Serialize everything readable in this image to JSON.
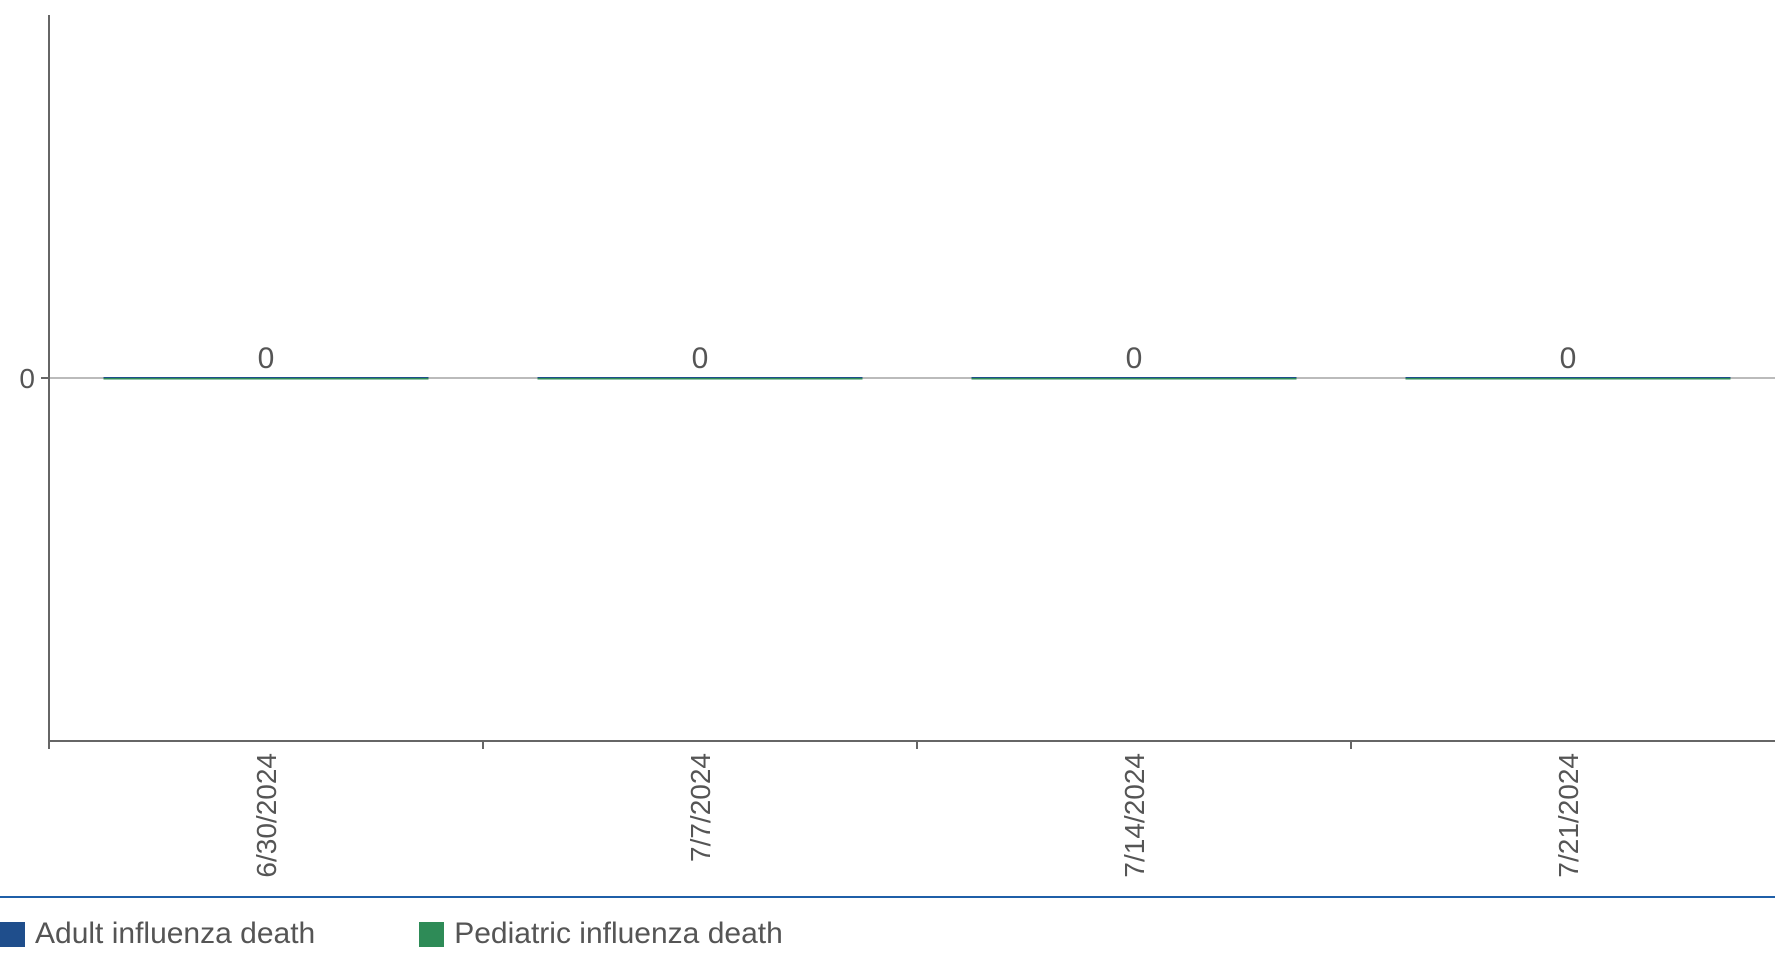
{
  "chart_data": {
    "type": "bar",
    "categories": [
      "6/30/2024",
      "7/7/2024",
      "7/14/2024",
      "7/21/2024"
    ],
    "series": [
      {
        "name": "Adult influenza death",
        "color": "#1f4e8c",
        "values": [
          0,
          0,
          0,
          0
        ]
      },
      {
        "name": "Pediatric influenza death",
        "color": "#2e8b57",
        "values": [
          0,
          0,
          0,
          0
        ]
      }
    ],
    "data_labels": [
      "0",
      "0",
      "0",
      "0"
    ],
    "y_ticks": [
      "0"
    ],
    "ylim": [
      -1,
      1
    ],
    "grid": false,
    "legend_position": "bottom-left"
  }
}
